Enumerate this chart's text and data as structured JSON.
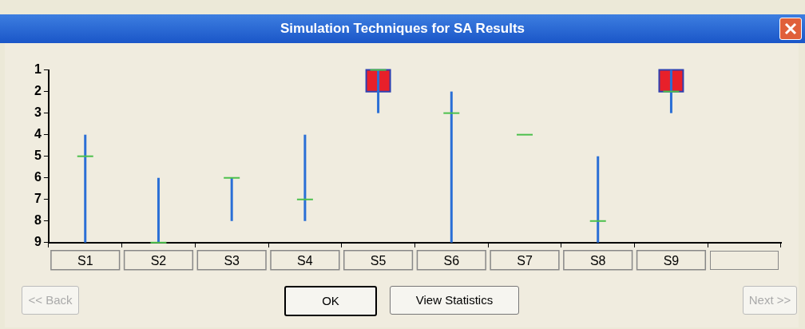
{
  "chart_data": {
    "type": "box",
    "title": "Simulation Techniques for SA Results",
    "categories": [
      "S1",
      "S2",
      "S3",
      "S4",
      "S5",
      "S6",
      "S7",
      "S8",
      "S9",
      null
    ],
    "boxes": [
      {
        "low": 4,
        "q1": 5,
        "median": 5,
        "q3": 5,
        "high": 9
      },
      {
        "low": 6,
        "q1": 9,
        "median": 9,
        "q3": 9,
        "high": 9
      },
      {
        "low": 6,
        "q1": 6,
        "median": 6,
        "q3": 6,
        "high": 8
      },
      {
        "low": 4,
        "q1": 7,
        "median": 7,
        "q3": 7,
        "high": 8
      },
      {
        "low": 1,
        "q1": 1,
        "median": 1,
        "q3": 2,
        "high": 3
      },
      {
        "low": 2,
        "q1": 3,
        "median": 3,
        "q3": 3,
        "high": 9
      },
      {
        "low": 4,
        "q1": 4,
        "median": 4,
        "q3": 4,
        "high": 4
      },
      {
        "low": 5,
        "q1": 8,
        "median": 8,
        "q3": 8,
        "high": 9
      },
      {
        "low": 1,
        "q1": 1,
        "median": 2,
        "q3": 2,
        "high": 3
      },
      null
    ],
    "ylim": [
      9,
      1
    ],
    "yticks": [
      1,
      2,
      3,
      4,
      5,
      6,
      7,
      8,
      9
    ],
    "grid": false,
    "legend": false,
    "annotations": [
      "<< Back",
      "OK",
      "View Statistics",
      "Next >>"
    ]
  }
}
